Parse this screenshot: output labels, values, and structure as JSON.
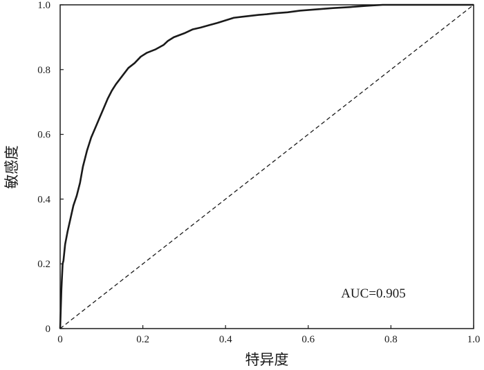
{
  "chart_data": {
    "type": "line",
    "title": "",
    "xlabel": "特异度",
    "ylabel": "敏感度",
    "xlim": [
      0,
      1
    ],
    "ylim": [
      0,
      1
    ],
    "x_ticks": [
      "0",
      "0.2",
      "0.4",
      "0.6",
      "0.8",
      "1.0"
    ],
    "y_ticks": [
      "0",
      "0.2",
      "0.4",
      "0.6",
      "0.8",
      "1.0"
    ],
    "grid": false,
    "annotation": "AUC=0.905",
    "colors": {
      "curve": "#1a1a1a",
      "axes": "#1a1a1a"
    },
    "series": [
      {
        "style": "solid",
        "x": [
          0,
          0.003,
          0.006,
          0.008,
          0.012,
          0.018,
          0.025,
          0.032,
          0.04,
          0.048,
          0.055,
          0.065,
          0.075,
          0.085,
          0.095,
          0.105,
          0.115,
          0.125,
          0.135,
          0.15,
          0.165,
          0.18,
          0.195,
          0.21,
          0.23,
          0.25,
          0.26,
          0.275,
          0.3,
          0.32,
          0.34,
          0.36,
          0.38,
          0.4,
          0.42,
          0.44,
          0.46,
          0.48,
          0.5,
          0.52,
          0.55,
          0.58,
          0.62,
          0.66,
          0.7,
          0.74,
          0.78,
          0.82,
          0.86,
          0.9,
          0.95,
          1.0
        ],
        "y": [
          0,
          0.12,
          0.2,
          0.21,
          0.26,
          0.3,
          0.34,
          0.38,
          0.41,
          0.45,
          0.5,
          0.55,
          0.59,
          0.62,
          0.65,
          0.68,
          0.71,
          0.735,
          0.755,
          0.78,
          0.805,
          0.82,
          0.84,
          0.852,
          0.862,
          0.876,
          0.888,
          0.9,
          0.912,
          0.924,
          0.93,
          0.937,
          0.944,
          0.952,
          0.96,
          0.963,
          0.966,
          0.969,
          0.971,
          0.974,
          0.977,
          0.982,
          0.986,
          0.99,
          0.993,
          0.997,
          1.0,
          1.0,
          1.0,
          1.0,
          1.0,
          1.0
        ]
      },
      {
        "style": "dashed",
        "x": [
          0,
          1
        ],
        "y": [
          0,
          1
        ]
      }
    ]
  }
}
